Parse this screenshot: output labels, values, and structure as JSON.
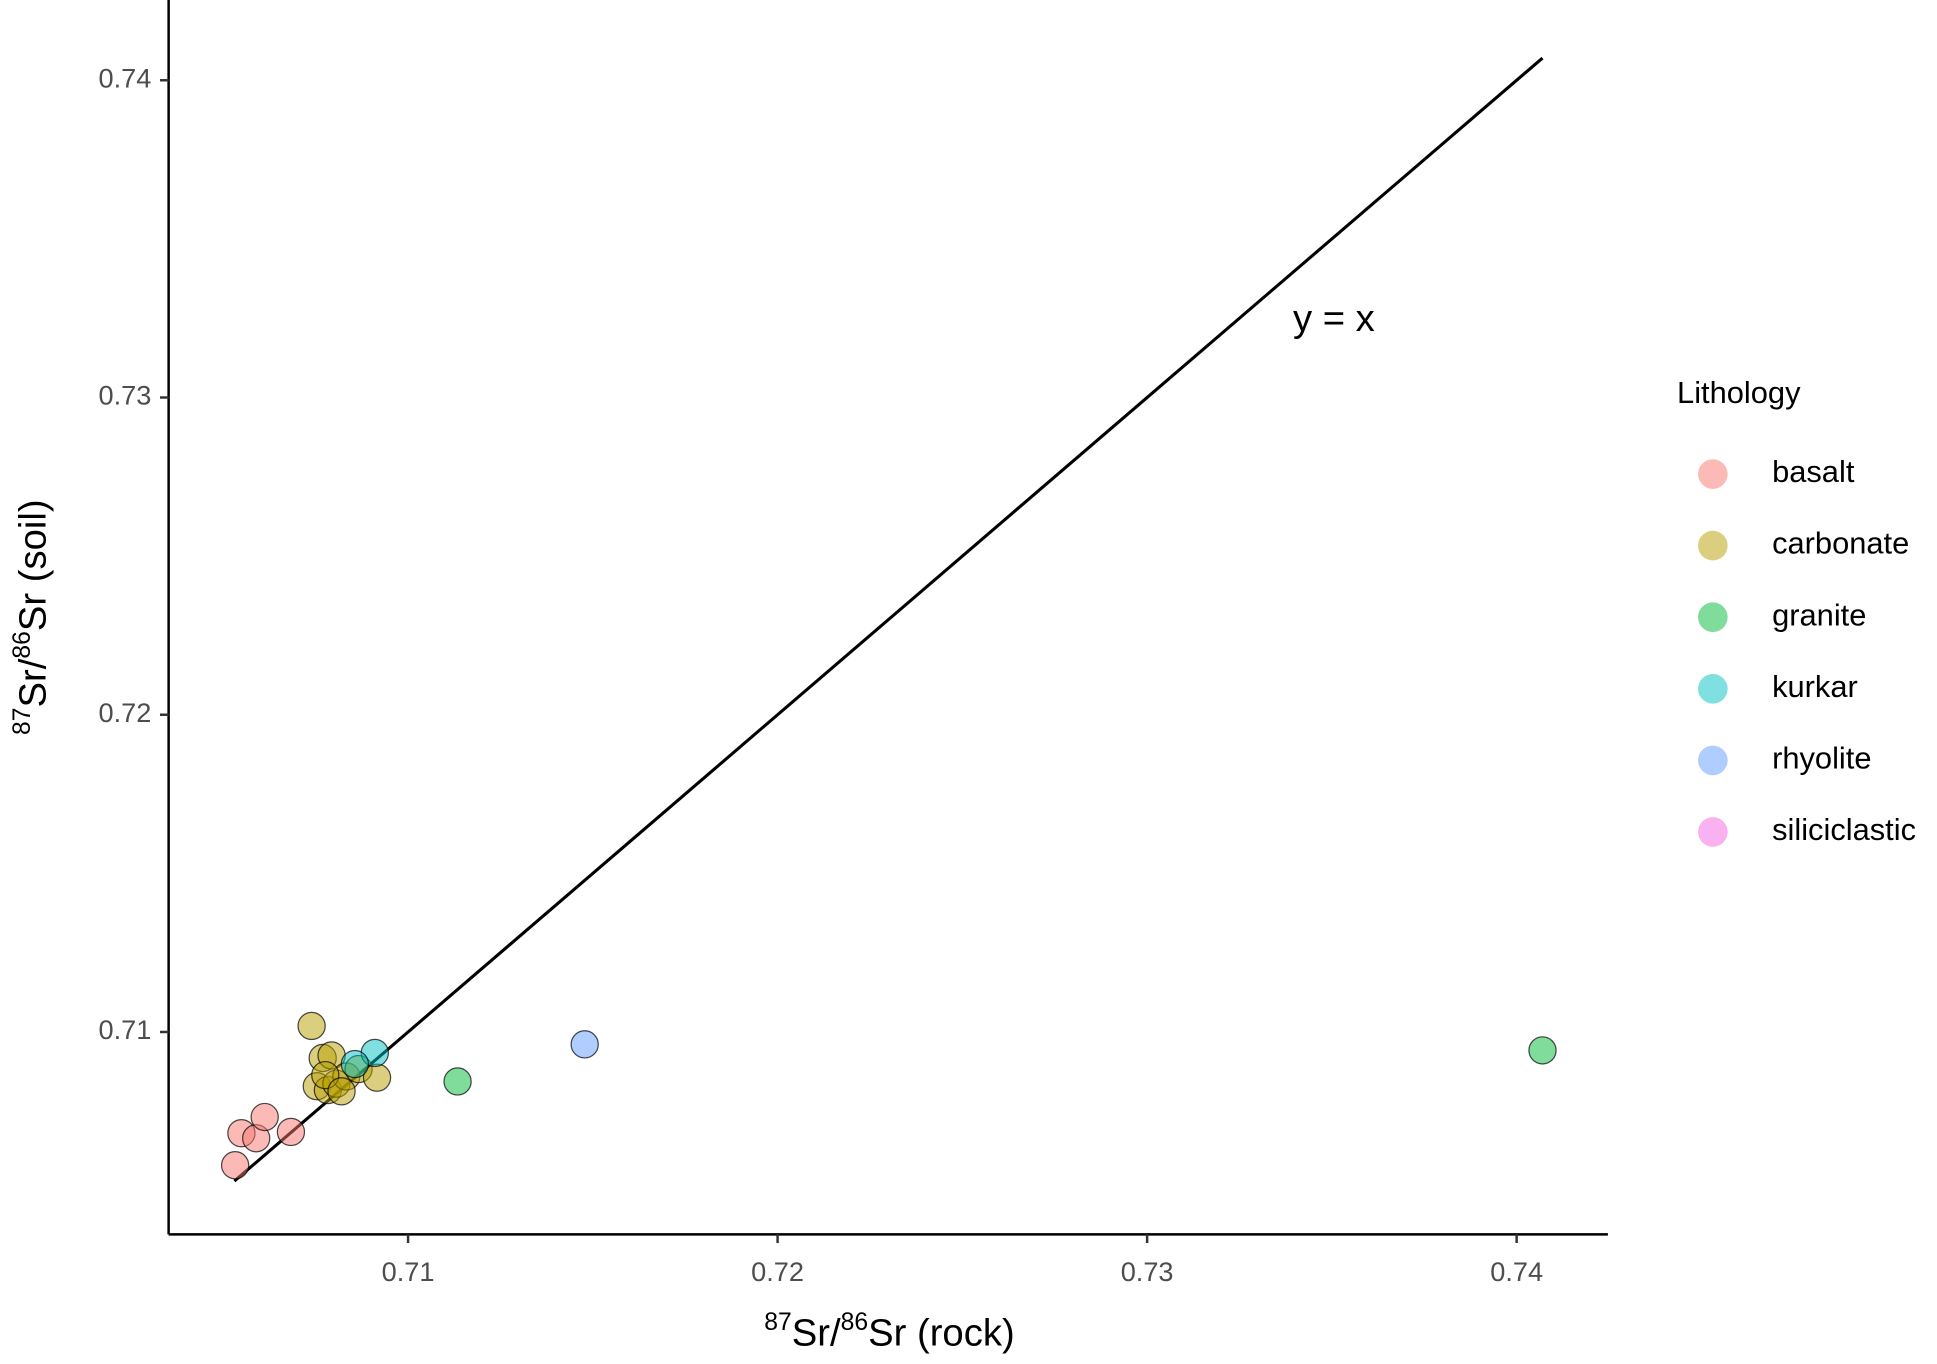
{
  "chart_data": {
    "type": "scatter",
    "xlabel": [
      "87",
      "Sr/",
      "86",
      "Sr (rock)"
    ],
    "ylabel": [
      "87",
      "Sr/",
      "86",
      "Sr (soil)"
    ],
    "legend_title": "Lithology",
    "xlim": [
      0.70352,
      0.74247
    ],
    "ylim": [
      0.70362,
      0.74253
    ],
    "xticks": [
      0.71,
      0.72,
      0.73,
      0.74
    ],
    "yticks": [
      0.71,
      0.72,
      0.73,
      0.74
    ],
    "identity_line": {
      "label": "y = x",
      "from": 0.7053,
      "to": 0.7407
    },
    "series": [
      {
        "name": "basalt",
        "color": "#F8766D",
        "x": [
          0.70532,
          0.70549,
          0.70589,
          0.70612,
          0.70683
        ],
        "values": [
          0.7058,
          0.70681,
          0.70665,
          0.70732,
          0.70685
        ]
      },
      {
        "name": "carbonate",
        "color": "#B79F00",
        "x": [
          0.70739,
          0.70769,
          0.70793,
          0.70753,
          0.70783,
          0.70806,
          0.70833,
          0.70866,
          0.70916,
          0.70776,
          0.7082
        ],
        "values": [
          0.71019,
          0.70918,
          0.70926,
          0.70829,
          0.70817,
          0.70837,
          0.7086,
          0.70883,
          0.70856,
          0.70864,
          0.70813
        ]
      },
      {
        "name": "granite",
        "color": "#00BA38",
        "x": [
          0.71134,
          0.7407
        ],
        "values": [
          0.70844,
          0.70942
        ]
      },
      {
        "name": "kurkar",
        "color": "#00BFC4",
        "x": [
          0.7091,
          0.70856
        ],
        "values": [
          0.70934,
          0.70899
        ]
      },
      {
        "name": "rhyolite",
        "color": "#619CFF",
        "x": [
          0.71478
        ],
        "values": [
          0.70961
        ]
      },
      {
        "name": "siliciclastic",
        "color": "#F564E3",
        "x": [],
        "values": []
      }
    ]
  }
}
